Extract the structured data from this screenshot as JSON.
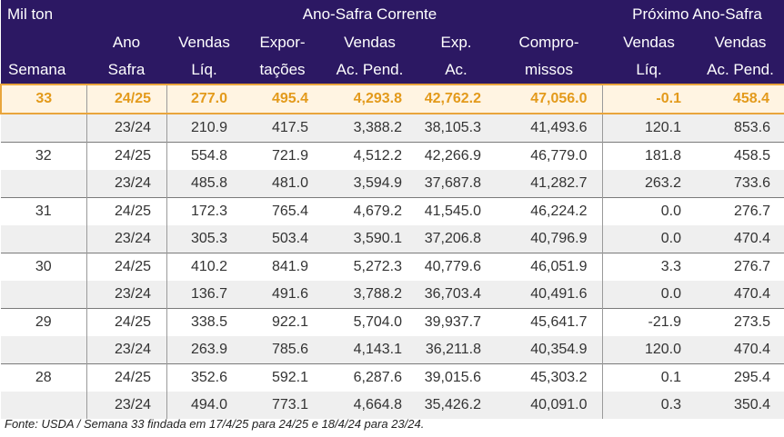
{
  "header": {
    "unit": "Mil ton",
    "group_current": "Ano-Safra Corrente",
    "group_next": "Próximo Ano-Safra",
    "row2": [
      "",
      "Ano",
      "Vendas",
      "Expor-",
      "Vendas",
      "Exp.",
      "Compro-",
      "Vendas",
      "Vendas"
    ],
    "row3": [
      "Semana",
      "Safra",
      "Líq.",
      "tações",
      "Ac. Pend.",
      "Ac.",
      "missos",
      "Líq.",
      "Ac. Pend."
    ]
  },
  "rows": [
    {
      "week": "33",
      "year": "24/25",
      "vendas_liq": "277.0",
      "exportacoes": "495.4",
      "vendas_ac_pend": "4,293.8",
      "exp_ac": "42,762.2",
      "compromissos": "47,056.0",
      "prox_vendas_liq": "-0.1",
      "prox_vendas_ac_pend": "458.4"
    },
    {
      "week": "",
      "year": "23/24",
      "vendas_liq": "210.9",
      "exportacoes": "417.5",
      "vendas_ac_pend": "3,388.2",
      "exp_ac": "38,105.3",
      "compromissos": "41,493.6",
      "prox_vendas_liq": "120.1",
      "prox_vendas_ac_pend": "853.6"
    },
    {
      "week": "32",
      "year": "24/25",
      "vendas_liq": "554.8",
      "exportacoes": "721.9",
      "vendas_ac_pend": "4,512.2",
      "exp_ac": "42,266.9",
      "compromissos": "46,779.0",
      "prox_vendas_liq": "181.8",
      "prox_vendas_ac_pend": "458.5"
    },
    {
      "week": "",
      "year": "23/24",
      "vendas_liq": "485.8",
      "exportacoes": "481.0",
      "vendas_ac_pend": "3,594.9",
      "exp_ac": "37,687.8",
      "compromissos": "41,282.7",
      "prox_vendas_liq": "263.2",
      "prox_vendas_ac_pend": "733.6"
    },
    {
      "week": "31",
      "year": "24/25",
      "vendas_liq": "172.3",
      "exportacoes": "765.4",
      "vendas_ac_pend": "4,679.2",
      "exp_ac": "41,545.0",
      "compromissos": "46,224.2",
      "prox_vendas_liq": "0.0",
      "prox_vendas_ac_pend": "276.7"
    },
    {
      "week": "",
      "year": "23/24",
      "vendas_liq": "305.3",
      "exportacoes": "503.4",
      "vendas_ac_pend": "3,590.1",
      "exp_ac": "37,206.8",
      "compromissos": "40,796.9",
      "prox_vendas_liq": "0.0",
      "prox_vendas_ac_pend": "470.4"
    },
    {
      "week": "30",
      "year": "24/25",
      "vendas_liq": "410.2",
      "exportacoes": "841.9",
      "vendas_ac_pend": "5,272.3",
      "exp_ac": "40,779.6",
      "compromissos": "46,051.9",
      "prox_vendas_liq": "3.3",
      "prox_vendas_ac_pend": "276.7"
    },
    {
      "week": "",
      "year": "23/24",
      "vendas_liq": "136.7",
      "exportacoes": "491.6",
      "vendas_ac_pend": "3,788.2",
      "exp_ac": "36,703.4",
      "compromissos": "40,491.6",
      "prox_vendas_liq": "0.0",
      "prox_vendas_ac_pend": "470.4"
    },
    {
      "week": "29",
      "year": "24/25",
      "vendas_liq": "338.5",
      "exportacoes": "922.1",
      "vendas_ac_pend": "5,704.0",
      "exp_ac": "39,937.7",
      "compromissos": "45,641.7",
      "prox_vendas_liq": "-21.9",
      "prox_vendas_ac_pend": "273.5"
    },
    {
      "week": "",
      "year": "23/24",
      "vendas_liq": "263.9",
      "exportacoes": "785.6",
      "vendas_ac_pend": "4,143.1",
      "exp_ac": "36,211.8",
      "compromissos": "40,354.9",
      "prox_vendas_liq": "120.0",
      "prox_vendas_ac_pend": "470.4"
    },
    {
      "week": "28",
      "year": "24/25",
      "vendas_liq": "352.6",
      "exportacoes": "592.1",
      "vendas_ac_pend": "6,287.6",
      "exp_ac": "39,015.6",
      "compromissos": "45,303.2",
      "prox_vendas_liq": "0.1",
      "prox_vendas_ac_pend": "295.4"
    },
    {
      "week": "",
      "year": "23/24",
      "vendas_liq": "494.0",
      "exportacoes": "773.1",
      "vendas_ac_pend": "4,664.8",
      "exp_ac": "35,426.2",
      "compromissos": "40,091.0",
      "prox_vendas_liq": "0.3",
      "prox_vendas_ac_pend": "350.4"
    }
  ],
  "footer": "Fonte: USDA / Semana 33 findada em 17/4/25 para 24/25 e 18/4/24 para 23/24.",
  "colors": {
    "header_bg": "#2c1863",
    "highlight_text": "#e39a1b",
    "highlight_border": "#e9a53c",
    "alt_row_bg": "#efefef"
  }
}
